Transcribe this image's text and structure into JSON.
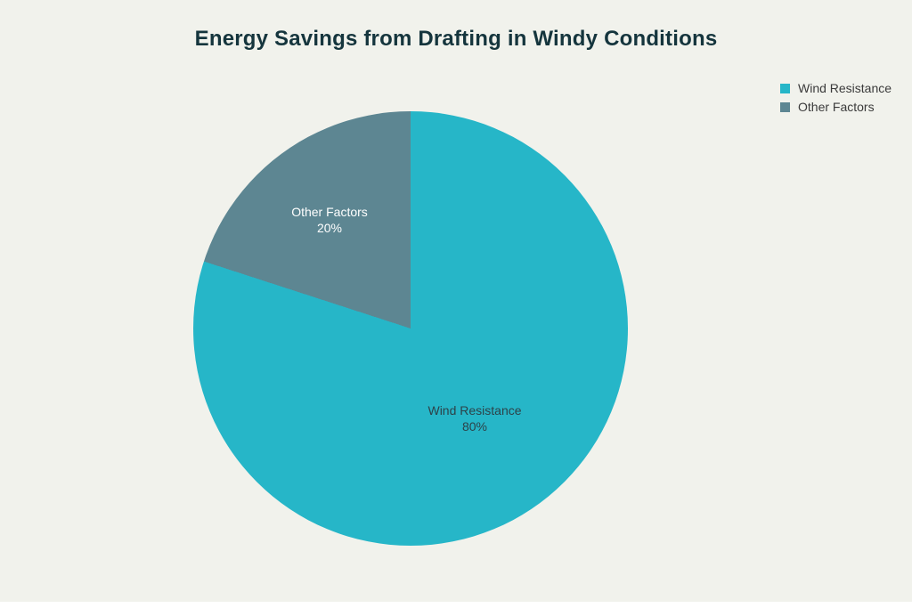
{
  "title": "Energy Savings from Drafting in Windy Conditions",
  "colors": {
    "background": "#f1f2ec",
    "page_strip": "#ffffff",
    "title_text": "#15353d",
    "legend_text": "#3b3b3b"
  },
  "chart_data": {
    "type": "pie",
    "title": "Energy Savings from Drafting in Windy Conditions",
    "start_angle_deg": 0,
    "direction": "clockwise",
    "legend_position": "top-right",
    "slices": [
      {
        "label": "Wind Resistance",
        "value": 80,
        "percent_label": "80%",
        "color": "#26b6c8",
        "label_color": "#2d4249"
      },
      {
        "label": "Other Factors",
        "value": 20,
        "percent_label": "20%",
        "color": "#5d8692",
        "label_color": "#ffffff"
      }
    ]
  }
}
